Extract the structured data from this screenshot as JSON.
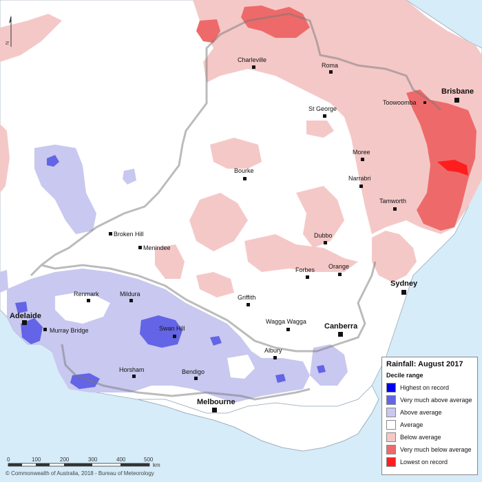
{
  "legend": {
    "title": "Rainfall: August 2017",
    "subtitle": "Decile range",
    "items": [
      {
        "label": "Highest on record",
        "color": "#0000f0"
      },
      {
        "label": "Very much above average",
        "color": "#6464e6"
      },
      {
        "label": "Above average",
        "color": "#c8c8f0"
      },
      {
        "label": "Average",
        "color": "#ffffff"
      },
      {
        "label": "Below average",
        "color": "#f5c8c8"
      },
      {
        "label": "Very much below average",
        "color": "#ee6a6a"
      },
      {
        "label": "Lowest on record",
        "color": "#ff1e1e"
      }
    ]
  },
  "scale": {
    "ticks": [
      "0",
      "100",
      "200",
      "300",
      "400",
      "500"
    ],
    "unit": "km"
  },
  "north_label": "N",
  "credit": "© Commonwealth of Australia, 2018 - Bureau of Meteorology",
  "places": {
    "charleville": "Charleville",
    "roma": "Roma",
    "brisbane": "Brisbane",
    "toowoomba": "Toowoomba",
    "st_george": "St George",
    "moree": "Moree",
    "bourke": "Bourke",
    "narrabri": "Narrabri",
    "tamworth": "Tamworth",
    "broken_hill": "Broken Hill",
    "menindee": "Menindee",
    "dubbo": "Dubbo",
    "forbes": "Forbes",
    "orange": "Orange",
    "sydney": "Sydney",
    "renmark": "Renmark",
    "mildura": "Mildura",
    "griffith": "Griffith",
    "adelaide": "Adelaide",
    "murray_bridge": "Murray Bridge",
    "swan_hill": "Swan Hill",
    "wagga_wagga": "Wagga Wagga",
    "canberra": "Canberra",
    "albury": "Albury",
    "horsham": "Horsham",
    "bendigo": "Bendigo",
    "melbourne": "Melbourne"
  }
}
